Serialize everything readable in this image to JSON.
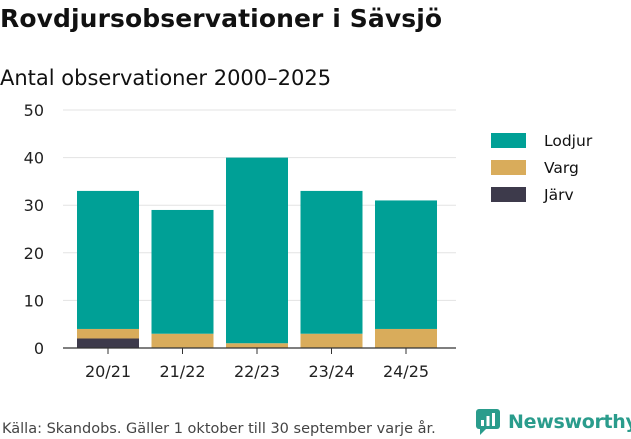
{
  "title": "Rovdjursobservationer i Sävsjö",
  "subtitle": "Antal observationer 2000–2025",
  "footer": "Källa: Skandobs. Gäller 1 oktober till 30 september varje år.",
  "brand": {
    "name": "Newsworthy",
    "icon": "newsworthy-logo-icon",
    "color": "#2a9c8c"
  },
  "chart_data": {
    "type": "bar",
    "stacked": true,
    "categories": [
      "20/21",
      "21/22",
      "22/23",
      "23/24",
      "24/25"
    ],
    "series": [
      {
        "name": "Järv",
        "color": "#3d3a4b",
        "values": [
          2,
          0,
          0,
          0,
          0
        ]
      },
      {
        "name": "Varg",
        "color": "#d9ac5b",
        "values": [
          2,
          3,
          1,
          3,
          4
        ]
      },
      {
        "name": "Lodjur",
        "color": "#00a096",
        "values": [
          29,
          26,
          39,
          30,
          27
        ]
      }
    ],
    "legend_order": [
      "Lodjur",
      "Varg",
      "Järv"
    ],
    "ylim": [
      0,
      50
    ],
    "yticks": [
      0,
      10,
      20,
      30,
      40,
      50
    ],
    "grid": true,
    "legend_position": "right"
  }
}
